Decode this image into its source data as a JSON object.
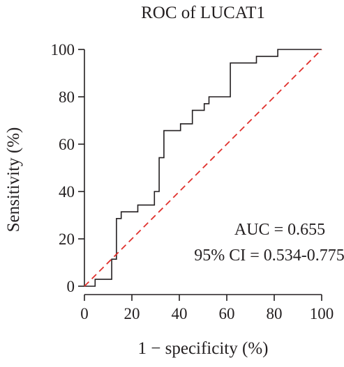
{
  "chart_data": {
    "type": "line",
    "title": "ROC of LUCAT1",
    "xlabel": "1 − specificity (%)",
    "ylabel": "Sensitivity (%)",
    "xlim": [
      0,
      100
    ],
    "ylim": [
      0,
      100
    ],
    "x_ticks": [
      0,
      20,
      40,
      60,
      80,
      100
    ],
    "y_ticks": [
      0,
      20,
      40,
      60,
      80,
      100
    ],
    "grid": false,
    "series": [
      {
        "name": "",
        "style": "step",
        "color": "#231f20",
        "points": [
          [
            0,
            0
          ],
          [
            4.5,
            0
          ],
          [
            4.5,
            2.9
          ],
          [
            11.5,
            2.9
          ],
          [
            11.5,
            11.4
          ],
          [
            13.5,
            11.4
          ],
          [
            13.5,
            28.6
          ],
          [
            15.5,
            28.6
          ],
          [
            15.5,
            31.4
          ],
          [
            22.5,
            31.4
          ],
          [
            22.5,
            34.3
          ],
          [
            29.5,
            34.3
          ],
          [
            29.5,
            40.0
          ],
          [
            31.5,
            40.0
          ],
          [
            31.5,
            54.3
          ],
          [
            33.5,
            54.3
          ],
          [
            33.5,
            65.7
          ],
          [
            40.5,
            65.7
          ],
          [
            40.5,
            68.6
          ],
          [
            45.5,
            68.6
          ],
          [
            45.5,
            74.3
          ],
          [
            50.5,
            74.3
          ],
          [
            50.5,
            77.1
          ],
          [
            52.5,
            77.1
          ],
          [
            52.5,
            80.0
          ],
          [
            61.5,
            80.0
          ],
          [
            61.5,
            94.3
          ],
          [
            72.5,
            94.3
          ],
          [
            72.5,
            97.1
          ],
          [
            81.5,
            97.1
          ],
          [
            81.5,
            100
          ],
          [
            100,
            100
          ]
        ]
      },
      {
        "name": "",
        "style": "dashed",
        "color": "#e0312d",
        "points": [
          [
            0,
            0
          ],
          [
            100,
            100
          ]
        ]
      }
    ],
    "annotations": [
      "AUC = 0.655",
      "95% CI = 0.534-0.775"
    ]
  }
}
